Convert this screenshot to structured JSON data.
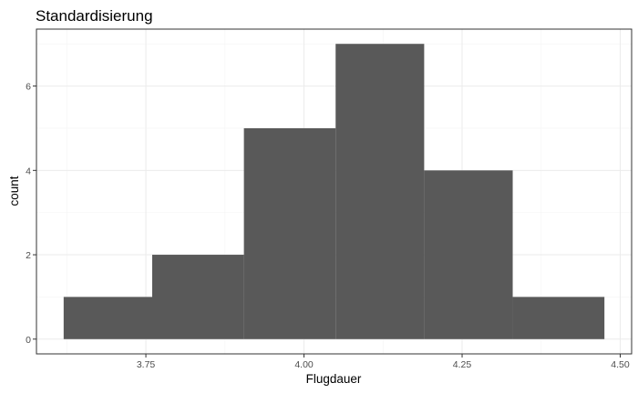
{
  "chart_data": {
    "type": "bar",
    "title": "Standardisierung",
    "xlabel": "Flugdauer",
    "ylabel": "count",
    "bin_edges": [
      3.62,
      3.76,
      3.905,
      4.05,
      4.19,
      4.33,
      4.475
    ],
    "values": [
      1,
      2,
      5,
      7,
      4,
      1
    ],
    "xlim": [
      3.62,
      4.475
    ],
    "ylim": [
      0,
      7
    ],
    "x_ticks": [
      3.75,
      4.0,
      4.25,
      4.5
    ],
    "x_tick_labels": [
      "3.75",
      "4.00",
      "4.25",
      "4.50"
    ],
    "y_ticks": [
      0,
      2,
      4,
      6
    ],
    "y_tick_labels": [
      "0",
      "2",
      "4",
      "6"
    ],
    "bar_color": "#595959",
    "grid": true,
    "legend": "none"
  }
}
